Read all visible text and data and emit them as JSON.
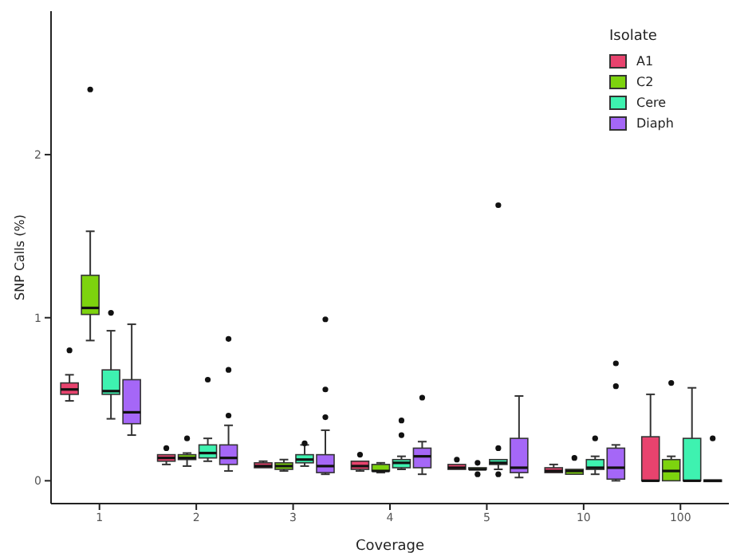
{
  "chart_data": {
    "type": "box",
    "xlabel": "Coverage",
    "ylabel": "SNP Calls (%)",
    "legend_title": "Isolate",
    "legend": "top right",
    "grid": false,
    "categories": [
      "1",
      "2",
      "3",
      "4",
      "5",
      "10",
      "100"
    ],
    "ylim": [
      -0.14,
      2.88
    ],
    "yticks": [
      0,
      1,
      2
    ],
    "series": [
      {
        "name": "A1",
        "color": "#e8436e",
        "boxes": [
          {
            "low": 0.49,
            "q1": 0.53,
            "median": 0.56,
            "q3": 0.6,
            "high": 0.65,
            "outliers": [
              0.8
            ]
          },
          {
            "low": 0.1,
            "q1": 0.12,
            "median": 0.14,
            "q3": 0.16,
            "high": 0.16,
            "outliers": [
              0.2
            ]
          },
          {
            "low": 0.08,
            "q1": 0.08,
            "median": 0.09,
            "q3": 0.11,
            "high": 0.12
          },
          {
            "low": 0.06,
            "q1": 0.07,
            "median": 0.09,
            "q3": 0.12,
            "high": 0.12,
            "outliers": [
              0.16
            ]
          },
          {
            "low": 0.07,
            "q1": 0.07,
            "median": 0.08,
            "q3": 0.1,
            "high": 0.1,
            "outliers": [
              0.13
            ]
          },
          {
            "low": 0.05,
            "q1": 0.05,
            "median": 0.06,
            "q3": 0.08,
            "high": 0.1
          },
          {
            "low": 0,
            "q1": 0,
            "median": 0,
            "q3": 0.27,
            "high": 0.53
          }
        ]
      },
      {
        "name": "C2",
        "color": "#7dd30e",
        "boxes": [
          {
            "low": 0.86,
            "q1": 1.02,
            "median": 1.06,
            "q3": 1.26,
            "high": 1.53,
            "outliers": [
              2.4
            ]
          },
          {
            "low": 0.09,
            "q1": 0.13,
            "median": 0.14,
            "q3": 0.16,
            "high": 0.17,
            "outliers": [
              0.26
            ]
          },
          {
            "low": 0.06,
            "q1": 0.07,
            "median": 0.09,
            "q3": 0.11,
            "high": 0.13
          },
          {
            "low": 0.05,
            "q1": 0.06,
            "median": 0.06,
            "q3": 0.1,
            "high": 0.11
          },
          {
            "low": 0.07,
            "q1": 0.07,
            "median": 0.07,
            "q3": 0.08,
            "high": 0.08,
            "outliers": [
              0.04,
              0.11
            ]
          },
          {
            "low": 0.04,
            "q1": 0.04,
            "median": 0.06,
            "q3": 0.07,
            "high": 0.07,
            "outliers": [
              0.14
            ]
          },
          {
            "low": 0,
            "q1": 0,
            "median": 0.06,
            "q3": 0.13,
            "high": 0.15,
            "outliers": [
              0.6
            ]
          }
        ]
      },
      {
        "name": "Cere",
        "color": "#3ef2b0",
        "boxes": [
          {
            "low": 0.38,
            "q1": 0.53,
            "median": 0.55,
            "q3": 0.68,
            "high": 0.92,
            "outliers": [
              1.03
            ]
          },
          {
            "low": 0.12,
            "q1": 0.14,
            "median": 0.17,
            "q3": 0.22,
            "high": 0.26,
            "outliers": [
              0.62
            ]
          },
          {
            "low": 0.09,
            "q1": 0.11,
            "median": 0.13,
            "q3": 0.16,
            "high": 0.22,
            "outliers": [
              0.23
            ]
          },
          {
            "low": 0.07,
            "q1": 0.08,
            "median": 0.11,
            "q3": 0.13,
            "high": 0.15,
            "outliers": [
              0.28,
              0.37
            ]
          },
          {
            "low": 0.07,
            "q1": 0.1,
            "median": 0.11,
            "q3": 0.13,
            "high": 0.13,
            "outliers": [
              0.04,
              0.2,
              1.69
            ]
          },
          {
            "low": 0.04,
            "q1": 0.07,
            "median": 0.08,
            "q3": 0.13,
            "high": 0.15,
            "outliers": [
              0.26
            ]
          },
          {
            "low": 0,
            "q1": 0,
            "median": 0,
            "q3": 0.26,
            "high": 0.57
          }
        ]
      },
      {
        "name": "Diaph",
        "color": "#a567f7",
        "boxes": [
          {
            "low": 0.28,
            "q1": 0.35,
            "median": 0.42,
            "q3": 0.62,
            "high": 0.96
          },
          {
            "low": 0.06,
            "q1": 0.1,
            "median": 0.14,
            "q3": 0.22,
            "high": 0.34,
            "outliers": [
              0.4,
              0.68,
              0.87
            ]
          },
          {
            "low": 0.04,
            "q1": 0.05,
            "median": 0.09,
            "q3": 0.16,
            "high": 0.31,
            "outliers": [
              0.39,
              0.56,
              0.99
            ]
          },
          {
            "low": 0.04,
            "q1": 0.08,
            "median": 0.15,
            "q3": 0.2,
            "high": 0.24,
            "outliers": [
              0.51
            ]
          },
          {
            "low": 0.02,
            "q1": 0.05,
            "median": 0.08,
            "q3": 0.26,
            "high": 0.52
          },
          {
            "low": 0,
            "q1": 0.01,
            "median": 0.08,
            "q3": 0.2,
            "high": 0.22,
            "outliers": [
              0.58,
              0.72
            ]
          },
          {
            "low": 0,
            "q1": 0,
            "median": 0,
            "q3": 0,
            "high": 0,
            "outliers": [
              0.26
            ]
          }
        ]
      }
    ]
  }
}
